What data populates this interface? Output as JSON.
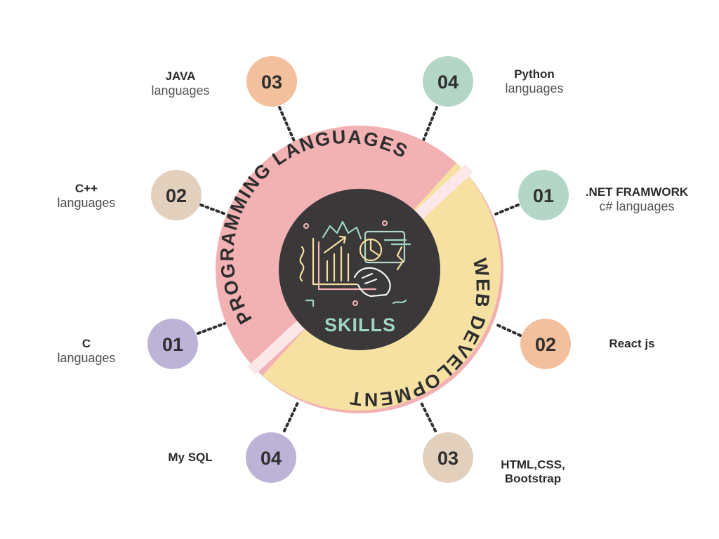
{
  "center": {
    "label": "SKILLS",
    "icon": "skills-illustration-icon",
    "color": "#3a3838"
  },
  "categories": [
    {
      "title": "PROGRAMMING LANGUAGES",
      "color": "#f2b1b3"
    },
    {
      "title": "WEB DEVELOPMENT",
      "color": "#f6e1a2"
    }
  ],
  "items": [
    {
      "num": "03",
      "color": "#f2c09c",
      "line1": "JAVA",
      "line2": "languages"
    },
    {
      "num": "04",
      "color": "#b3d6c7",
      "line1": "Python",
      "line2": "languages"
    },
    {
      "num": "02",
      "color": "#e2d0bd",
      "line1": "C++",
      "line2": "languages"
    },
    {
      "num": "01",
      "color": "#b3d6c7",
      "line1": ".NET FRAMWORK",
      "line2": "c# languages"
    },
    {
      "num": "01",
      "color": "#bdb3d6",
      "line1": "C",
      "line2": "languages"
    },
    {
      "num": "02",
      "color": "#f2c09c",
      "line1": "React js",
      "line2": ""
    },
    {
      "num": "04",
      "color": "#bdb3d6",
      "line1": "My SQL",
      "line2": ""
    },
    {
      "num": "03",
      "color": "#e2d0bd",
      "line1": "HTML,CSS,",
      "line2": "Bootstrap"
    }
  ]
}
